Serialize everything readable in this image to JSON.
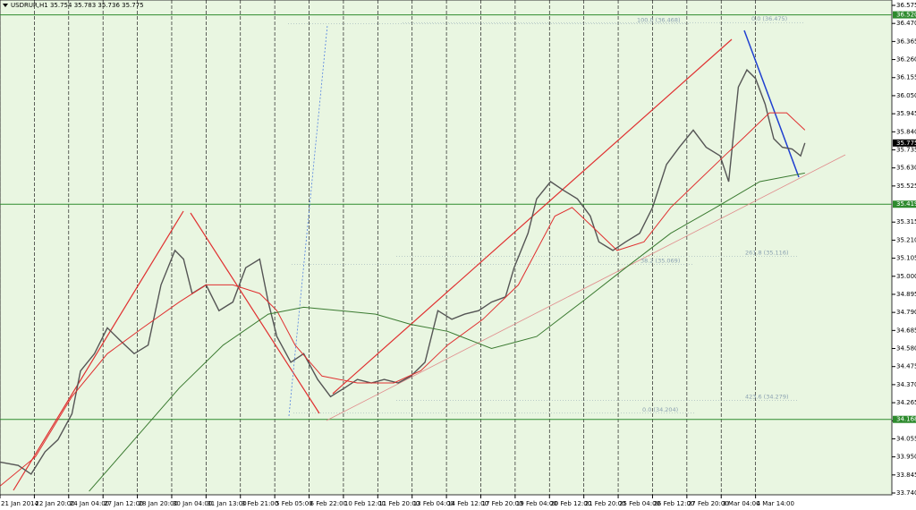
{
  "chart_data": {
    "type": "line",
    "title": "USDRUR,H1  35.754 35.783 35.736 35.775",
    "xlim": [
      0,
      831
    ],
    "ylim": [
      33.74,
      36.575
    ],
    "xticks": [
      {
        "value": 0,
        "label": "21 Jan 2014"
      },
      {
        "value": 32,
        "label": "22 Jan 20:00"
      },
      {
        "value": 64,
        "label": "24 Jan 04:00"
      },
      {
        "value": 96,
        "label": "27 Jan 12:00"
      },
      {
        "value": 128,
        "label": "28 Jan 20:00"
      },
      {
        "value": 160,
        "label": "30 Jan 04:00"
      },
      {
        "value": 192,
        "label": "31 Jan 13:00"
      },
      {
        "value": 224,
        "label": "3 Feb 21:00"
      },
      {
        "value": 256,
        "label": "5 Feb 05:00"
      },
      {
        "value": 288,
        "label": "6 Feb 22:00"
      },
      {
        "value": 320,
        "label": "10 Feb 12:00"
      },
      {
        "value": 352,
        "label": "11 Feb 20:00"
      },
      {
        "value": 384,
        "label": "13 Feb 04:00"
      },
      {
        "value": 416,
        "label": "14 Feb 12:00"
      },
      {
        "value": 448,
        "label": "17 Feb 20:00"
      },
      {
        "value": 480,
        "label": "19 Feb 04:00"
      },
      {
        "value": 512,
        "label": "20 Feb 12:00"
      },
      {
        "value": 544,
        "label": "21 Feb 20:00"
      },
      {
        "value": 576,
        "label": "25 Feb 04:00"
      },
      {
        "value": 608,
        "label": "26 Feb 12:00"
      },
      {
        "value": 640,
        "label": "27 Feb 20:00"
      },
      {
        "value": 672,
        "label": "3 Mar 04:00"
      },
      {
        "value": 704,
        "label": "4 Mar 14:00"
      }
    ],
    "yticks": [
      36.575,
      {
        "value": 36.47,
        "label": "36.470"
      },
      36.365,
      {
        "value": 36.26,
        "label": "36.260"
      },
      36.155,
      {
        "value": 36.05,
        "label": "36.050"
      },
      35.945,
      {
        "value": 35.84,
        "label": "35.840"
      },
      35.735,
      {
        "value": 35.63,
        "label": "35.630"
      },
      35.525,
      35.315,
      {
        "value": 35.21,
        "label": "35.210"
      },
      35.105,
      {
        "value": 35,
        "label": "35.000"
      },
      34.895,
      {
        "value": 34.79,
        "label": "34.790"
      },
      34.685,
      {
        "value": 34.58,
        "label": "34.580"
      },
      34.475,
      {
        "value": 34.37,
        "label": "34.370"
      },
      34.265,
      {
        "value": 34.16,
        "label": "34.160"
      },
      34.055,
      {
        "value": 33.95,
        "label": "33.950"
      },
      33.845,
      {
        "value": 33.74,
        "label": "33.740"
      }
    ],
    "grid": true,
    "series": [
      {
        "color": "#555555",
        "x": [
          0,
          17,
          29,
          42,
          54,
          67,
          75,
          88,
          100,
          113,
          125,
          138,
          150,
          163,
          171,
          179,
          192,
          204,
          217,
          229,
          242,
          250,
          258,
          271,
          283,
          296,
          308,
          321,
          333,
          346,
          358,
          371,
          383,
          396,
          408,
          421,
          433,
          446,
          458,
          471,
          479,
          492,
          500,
          513,
          525,
          538,
          550,
          558,
          571,
          583,
          596,
          608,
          621,
          633,
          646,
          658,
          671,
          679,
          688,
          696,
          704,
          713,
          721,
          729,
          738,
          746,
          750
        ],
        "values": [
          33.92,
          33.9,
          33.85,
          33.98,
          34.05,
          34.2,
          34.45,
          34.55,
          34.7,
          34.62,
          34.55,
          34.6,
          34.95,
          35.15,
          35.1,
          34.9,
          34.95,
          34.8,
          34.85,
          35.05,
          35.1,
          34.85,
          34.65,
          34.5,
          34.55,
          34.4,
          34.3,
          34.35,
          34.4,
          34.38,
          34.4,
          34.38,
          34.42,
          34.5,
          34.8,
          34.75,
          34.78,
          34.8,
          34.85,
          34.88,
          35.05,
          35.25,
          35.45,
          35.55,
          35.5,
          35.45,
          35.35,
          35.2,
          35.15,
          35.2,
          35.25,
          35.4,
          35.65,
          35.75,
          35.85,
          35.75,
          35.7,
          35.55,
          36.1,
          36.2,
          36.15,
          36.0,
          35.8,
          35.75,
          35.74,
          35.7,
          35.775
        ]
      },
      {
        "color": "#e03030",
        "x": [
          0,
          33,
          67,
          100,
          133,
          167,
          192,
          217,
          242,
          258,
          275,
          300,
          333,
          367,
          392,
          417,
          450,
          483,
          500,
          517,
          533,
          550,
          575,
          600,
          625,
          650,
          675,
          692,
          717,
          733,
          750
        ],
        "values": [
          33.78,
          33.95,
          34.3,
          34.55,
          34.7,
          34.85,
          34.95,
          34.95,
          34.9,
          34.8,
          34.6,
          34.42,
          34.38,
          34.38,
          34.45,
          34.6,
          34.75,
          34.95,
          35.15,
          35.35,
          35.4,
          35.3,
          35.15,
          35.2,
          35.4,
          35.55,
          35.7,
          35.8,
          35.95,
          35.95,
          35.85
        ]
      },
      {
        "color": "#3a7a30",
        "x": [
          83,
          125,
          167,
          208,
          250,
          283,
          317,
          350,
          383,
          417,
          458,
          500,
          542,
          583,
          625,
          667,
          708,
          750
        ],
        "values": [
          33.75,
          34.05,
          34.35,
          34.6,
          34.78,
          34.82,
          34.8,
          34.78,
          34.72,
          34.68,
          34.58,
          34.65,
          34.85,
          35.05,
          35.25,
          35.4,
          35.55,
          35.6
        ]
      }
    ],
    "levels": [
      {
        "value": 36.52,
        "label": "36.520"
      },
      {
        "value": 35.419,
        "label": "35.419"
      },
      {
        "value": 34.168,
        "label": "34.168"
      }
    ],
    "current_price": {
      "value": 35.775,
      "label": "35.775"
    },
    "annotations": [
      {
        "value": 36.468,
        "label": "100.0 (36.468)"
      },
      {
        "value": 36.475,
        "label": "0.0 (36.475)"
      },
      {
        "value": 35.116,
        "label": "261.8 (35.116)"
      },
      {
        "value": 35.069,
        "label": "38.2 (35.069)"
      },
      {
        "value": 34.279,
        "label": "423.6 (34.279)"
      },
      {
        "value": 34.204,
        "label": "0.0 (34.204)"
      }
    ]
  }
}
